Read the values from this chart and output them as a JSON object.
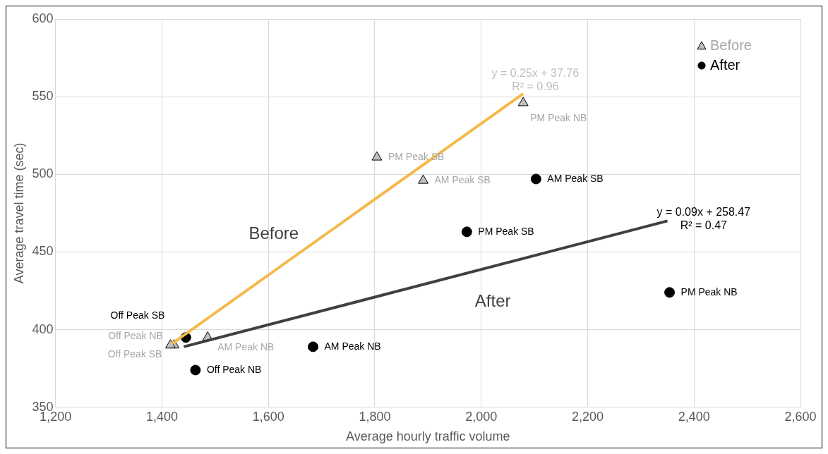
{
  "chart_data": {
    "type": "scatter",
    "xlabel": "Average hourly traffic volume",
    "ylabel": "Average travel time (sec)",
    "xlim": [
      1200,
      2600
    ],
    "xticks": [
      {
        "value": 1200,
        "label": "1,200"
      },
      {
        "value": 1400,
        "label": "1,400"
      },
      {
        "value": 1600,
        "label": "1,600"
      },
      {
        "value": 1800,
        "label": "1,800"
      },
      {
        "value": 2000,
        "label": "2,000"
      },
      {
        "value": 2200,
        "label": "2,200"
      },
      {
        "value": 2400,
        "label": "2,400"
      },
      {
        "value": 2600,
        "label": "2,600"
      }
    ],
    "ylim": [
      350,
      600
    ],
    "yticks": [
      350,
      400,
      450,
      500,
      550,
      600
    ],
    "grid": true,
    "legend": "top right",
    "series": [
      {
        "name": "Before",
        "marker": "triangle",
        "color": "#bfbfbf",
        "x": [
          2079,
          1804,
          1891,
          1486,
          1423,
          1416
        ],
        "values": [
          546,
          511,
          496,
          395,
          390,
          390
        ],
        "value_labels": [
          "PM Peak NB",
          "PM Peak SB",
          "AM Peak SB",
          "AM Peak NB",
          "Off Peak NB",
          "Off Peak SB"
        ]
      },
      {
        "name": "After",
        "marker": "circle",
        "color": "#000000",
        "x": [
          2103,
          1973,
          2354,
          1684,
          1463,
          1445
        ],
        "values": [
          497,
          463,
          424,
          389,
          374,
          395
        ],
        "value_labels": [
          "AM Peak SB",
          "PM Peak SB",
          "PM Peak NB",
          "AM Peak NB",
          "Off Peak NB",
          "Off Peak SB"
        ]
      },
      {
        "type": "line",
        "color": "#f5b94a",
        "x": [
          1419,
          2079
        ],
        "values": [
          391,
          552
        ]
      },
      {
        "type": "line",
        "color": "#404040",
        "x": [
          1441,
          2350
        ],
        "values": [
          389,
          470
        ]
      }
    ],
    "annotations": [
      "Before",
      "After",
      "y = 0.25x + 37.76",
      "R² = 0.96",
      "y = 0.09x + 258.47",
      "R² = 0.47"
    ]
  }
}
